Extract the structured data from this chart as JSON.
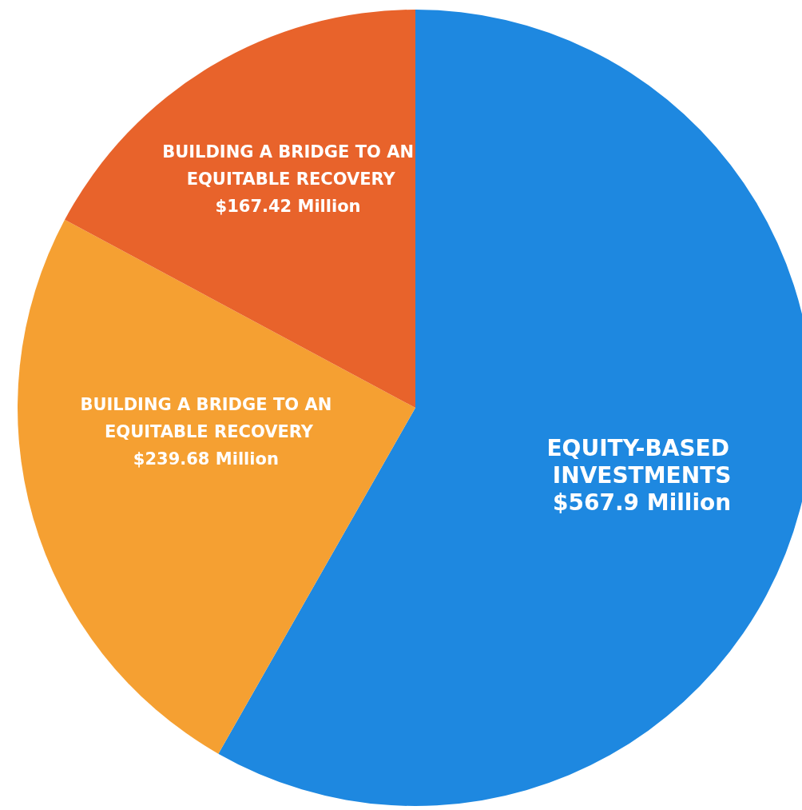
{
  "chart_data": {
    "type": "pie",
    "categories": [
      "EQUITY-BASED INVESTMENTS",
      "BUILDING A BRIDGE TO AN EQUITABLE RECOVERY",
      "BUILDING A BRIDGE TO AN EQUITABLE RECOVERY"
    ],
    "values": [
      567.9,
      239.68,
      167.42
    ],
    "value_labels": [
      "$567.9 Million",
      "$239.68 Million",
      "$167.42 Million"
    ],
    "colors": [
      "#1e88e0",
      "#f5a032",
      "#e8632b"
    ]
  }
}
